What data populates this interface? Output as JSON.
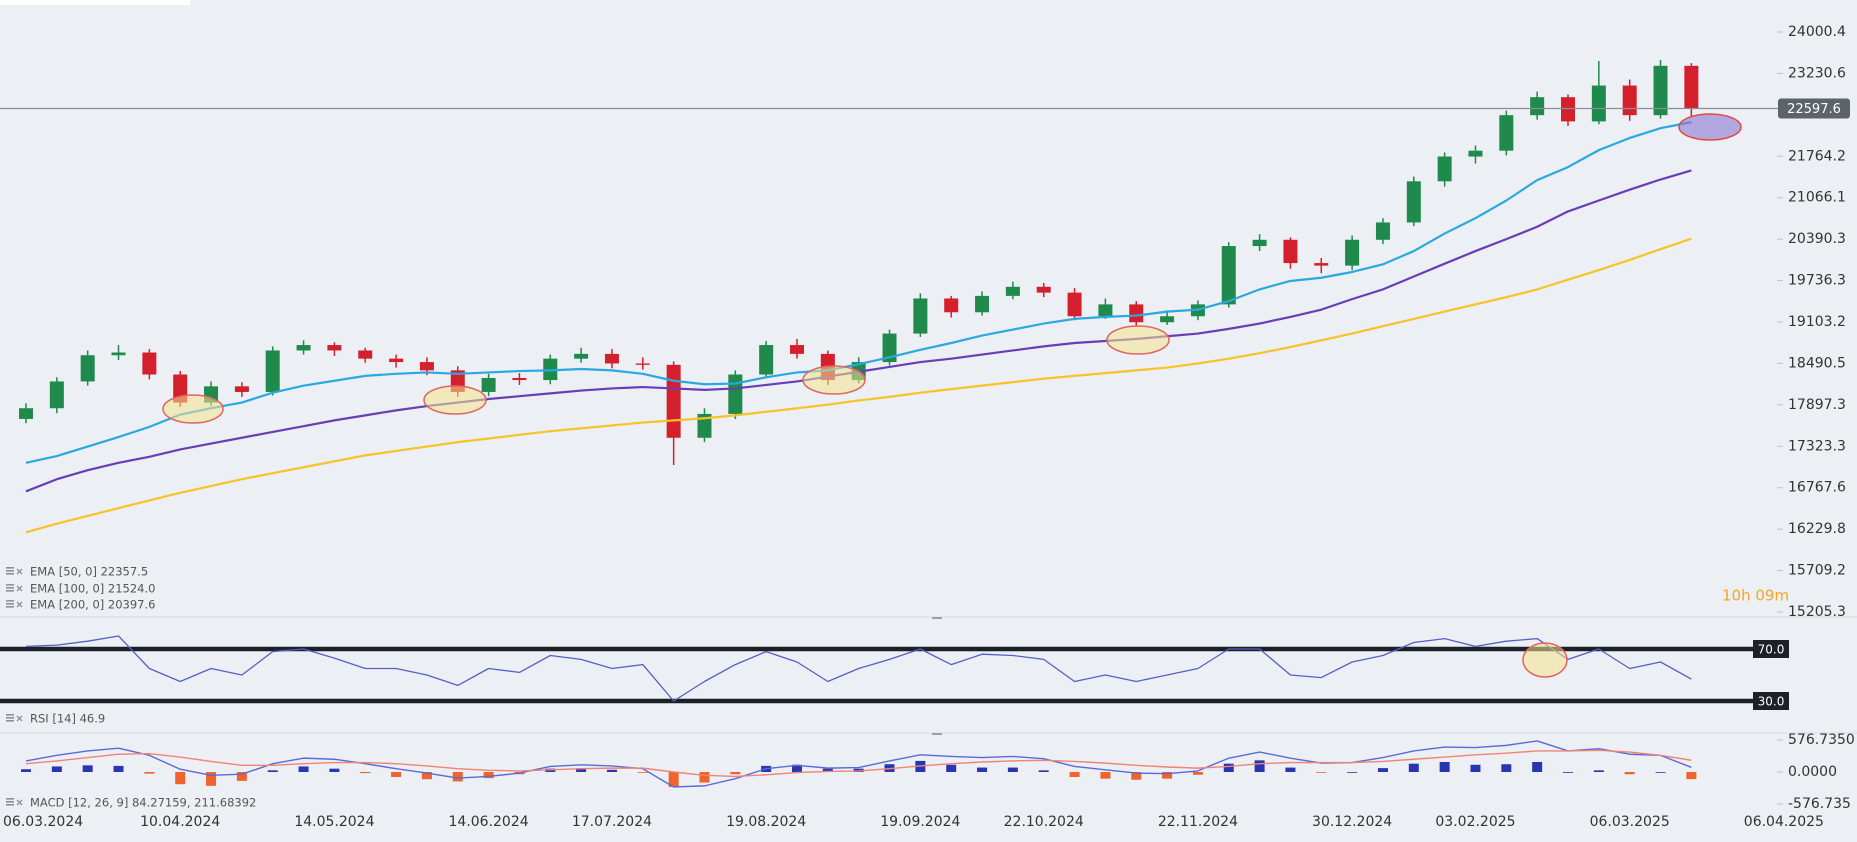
{
  "chart_data": [
    {
      "type": "candlestick",
      "categories": [
        "06.03.2024",
        null,
        null,
        null,
        null,
        "10.04.2024",
        null,
        null,
        null,
        null,
        "14.05.2024",
        null,
        null,
        null,
        null,
        "14.06.2024",
        null,
        null,
        null,
        "17.07.2024",
        null,
        null,
        null,
        null,
        "19.08.2024",
        null,
        null,
        null,
        null,
        "19.09.2024",
        null,
        null,
        null,
        "22.10.2024",
        null,
        null,
        null,
        null,
        "22.11.2024",
        null,
        null,
        null,
        null,
        "30.12.2024",
        null,
        null,
        null,
        "03.02.2025",
        null,
        null,
        null,
        null,
        "06.03.2025",
        null,
        null,
        null,
        null,
        "06.04.2025"
      ],
      "open": [
        17700,
        17850,
        18230,
        18610,
        18650,
        18330,
        17930,
        18160,
        18080,
        18680,
        18760,
        18680,
        18560,
        18510,
        18390,
        18080,
        18280,
        18250,
        18560,
        18630,
        18490,
        18470,
        17440,
        17770,
        18330,
        18760,
        18630,
        18250,
        18510,
        18930,
        19460,
        19250,
        19500,
        19640,
        19550,
        19190,
        19370,
        19100,
        19190,
        19370,
        20280,
        20380,
        20010,
        19970,
        20380,
        20660,
        21340,
        21760,
        21860,
        22480,
        22800,
        22370,
        23010,
        22480,
        23370,
        null,
        null,
        null
      ],
      "high": [
        17920,
        18290,
        18680,
        18760,
        18700,
        18380,
        18230,
        18220,
        18740,
        18830,
        18800,
        18720,
        18620,
        18580,
        18450,
        18340,
        18350,
        18620,
        18720,
        18700,
        18580,
        18520,
        17850,
        18390,
        18820,
        18850,
        18680,
        18580,
        18990,
        19540,
        19500,
        19570,
        19720,
        19700,
        19620,
        19460,
        19420,
        19280,
        19430,
        20340,
        20470,
        20420,
        20090,
        20450,
        20730,
        21420,
        21830,
        21950,
        22560,
        22900,
        22850,
        23460,
        23120,
        23480,
        23420,
        null,
        null,
        null
      ],
      "low": [
        17640,
        17780,
        18170,
        18540,
        18260,
        17870,
        17880,
        18010,
        18030,
        18620,
        18600,
        18500,
        18430,
        18320,
        18010,
        18020,
        18180,
        18190,
        18500,
        18420,
        18400,
        17070,
        17380,
        17700,
        18280,
        18560,
        18180,
        18200,
        18460,
        18880,
        19170,
        19200,
        19450,
        19480,
        19130,
        19150,
        19030,
        19060,
        19130,
        19320,
        20200,
        19920,
        19850,
        19900,
        20310,
        20600,
        21250,
        21640,
        21780,
        22400,
        22290,
        22320,
        22380,
        22420,
        22450,
        null,
        null,
        null
      ],
      "close": [
        17850,
        18230,
        18610,
        18650,
        18330,
        17930,
        18160,
        18080,
        18680,
        18760,
        18680,
        18560,
        18510,
        18390,
        18080,
        18280,
        18250,
        18560,
        18630,
        18490,
        18470,
        17440,
        17770,
        18330,
        18760,
        18630,
        18250,
        18510,
        18930,
        19460,
        19250,
        19500,
        19640,
        19550,
        19190,
        19370,
        19100,
        19190,
        19370,
        20280,
        20380,
        20010,
        19970,
        20380,
        20660,
        21340,
        21760,
        21860,
        22480,
        22800,
        22370,
        23010,
        22480,
        23370,
        22597.6,
        null,
        null,
        null
      ],
      "up_color": "#1f8a4c",
      "down_color": "#d3202c",
      "price_line_color": "#8a9099",
      "series": [
        {
          "name": "EMA [50, 0] 22357.5",
          "color": "#2aa8e0",
          "values": [
            17100,
            17190,
            17320,
            17450,
            17590,
            17760,
            17850,
            17930,
            18070,
            18170,
            18240,
            18310,
            18340,
            18360,
            18340,
            18360,
            18380,
            18390,
            18410,
            18390,
            18340,
            18240,
            18190,
            18200,
            18290,
            18360,
            18390,
            18480,
            18580,
            18690,
            18790,
            18900,
            18990,
            19080,
            19150,
            19180,
            19200,
            19260,
            19290,
            19420,
            19600,
            19730,
            19780,
            19870,
            19990,
            20200,
            20480,
            20730,
            21020,
            21360,
            21580,
            21870,
            22080,
            22250,
            22357.5,
            null,
            null,
            null
          ]
        },
        {
          "name": "EMA [100, 0] 21524.0",
          "color": "#6a3db8",
          "values": [
            16720,
            16880,
            17000,
            17100,
            17180,
            17280,
            17360,
            17440,
            17520,
            17600,
            17680,
            17750,
            17820,
            17880,
            17930,
            17980,
            18020,
            18060,
            18100,
            18130,
            18150,
            18130,
            18110,
            18130,
            18180,
            18230,
            18300,
            18370,
            18440,
            18510,
            18560,
            18620,
            18680,
            18740,
            18790,
            18820,
            18850,
            18890,
            18930,
            19000,
            19080,
            19180,
            19290,
            19450,
            19600,
            19800,
            20000,
            20200,
            20390,
            20590,
            20840,
            21020,
            21200,
            21370,
            21524,
            null,
            null,
            null
          ]
        },
        {
          "name": "EMA [200, 0] 20397.6",
          "color": "#f7c325",
          "values": [
            16190,
            16300,
            16400,
            16500,
            16600,
            16700,
            16790,
            16880,
            16960,
            17040,
            17120,
            17200,
            17260,
            17320,
            17380,
            17430,
            17480,
            17530,
            17570,
            17610,
            17650,
            17680,
            17710,
            17750,
            17800,
            17850,
            17900,
            17960,
            18010,
            18070,
            18120,
            18170,
            18220,
            18270,
            18310,
            18350,
            18390,
            18430,
            18490,
            18560,
            18640,
            18730,
            18830,
            18930,
            19040,
            19150,
            19260,
            19370,
            19480,
            19600,
            19750,
            19900,
            20060,
            20230,
            20397.6,
            null,
            null,
            null
          ]
        }
      ],
      "ylim": [
        15205.3,
        24000.4
      ],
      "yticks": [
        24000.4,
        23230.6,
        21764.2,
        21066.1,
        20390.3,
        19736.3,
        19103.2,
        18490.5,
        17897.3,
        17323.3,
        16767.6,
        16229.8,
        15709.2,
        15205.3
      ],
      "log_scale": true,
      "grid": false,
      "countdown": "10h 09m"
    },
    {
      "type": "line",
      "series": [
        {
          "name": "RSI [14] 46.9",
          "color": "#5660c4",
          "values": [
            72,
            73,
            76,
            80,
            55,
            45,
            55,
            50,
            68,
            70,
            63,
            55,
            55,
            50,
            42,
            55,
            52,
            65,
            62,
            55,
            58,
            30,
            45,
            58,
            68,
            60,
            45,
            55,
            62,
            70,
            58,
            66,
            65,
            62,
            45,
            50,
            45,
            50,
            55,
            70,
            70,
            50,
            48,
            60,
            65,
            75,
            78,
            72,
            76,
            78,
            62,
            70,
            55,
            60,
            46.9
          ]
        }
      ],
      "ylim": [
        10,
        90
      ],
      "yticks": [
        {
          "value": 70,
          "label": "70.0"
        },
        {
          "value": 30,
          "label": "30.0"
        }
      ],
      "grid": false
    },
    {
      "type": "combo",
      "series": [
        {
          "mark": "bar",
          "color": "#2836b0",
          "negative_color": "#f0632c",
          "values": [
            50,
            100,
            120,
            110,
            -30,
            -220,
            -250,
            -160,
            30,
            100,
            60,
            -20,
            -90,
            -130,
            -170,
            -110,
            -40,
            60,
            70,
            40,
            -10,
            -270,
            -190,
            -40,
            110,
            130,
            60,
            60,
            140,
            200,
            130,
            80,
            80,
            30,
            -90,
            -120,
            -140,
            -120,
            -50,
            150,
            210,
            80,
            -10,
            0,
            70,
            150,
            180,
            130,
            140,
            180,
            0,
            30,
            -40,
            0,
            -127.41233
          ]
        },
        {
          "mark": "line",
          "name": "MACD [12, 26, 9] 84.27159, 211.68392",
          "color": "#5a6ad8",
          "values": [
            200,
            300,
            380,
            430,
            300,
            50,
            -60,
            -40,
            150,
            250,
            230,
            150,
            60,
            -20,
            -110,
            -80,
            -20,
            100,
            130,
            110,
            60,
            -270,
            -250,
            -120,
            60,
            120,
            70,
            80,
            200,
            310,
            280,
            260,
            280,
            240,
            100,
            40,
            -20,
            -30,
            20,
            250,
            360,
            250,
            160,
            170,
            260,
            380,
            450,
            440,
            480,
            560,
            380,
            420,
            320,
            300,
            84.27159
          ]
        },
        {
          "mark": "line",
          "color": "#f08474",
          "values": [
            150,
            200,
            260,
            320,
            330,
            270,
            190,
            120,
            120,
            150,
            170,
            170,
            150,
            110,
            60,
            30,
            20,
            40,
            60,
            70,
            70,
            0,
            -60,
            -80,
            -50,
            -10,
            10,
            20,
            60,
            110,
            150,
            180,
            200,
            210,
            190,
            160,
            120,
            90,
            70,
            100,
            150,
            170,
            170,
            170,
            190,
            230,
            270,
            310,
            340,
            380,
            380,
            390,
            360,
            300,
            211.68392
          ]
        }
      ],
      "ylim": [
        -576.735,
        576.735
      ],
      "yticks": [
        {
          "value": 576.735,
          "label": "576.7350"
        },
        {
          "value": 0,
          "label": "0.0000"
        },
        -576.735
      ],
      "grid": false
    }
  ]
}
